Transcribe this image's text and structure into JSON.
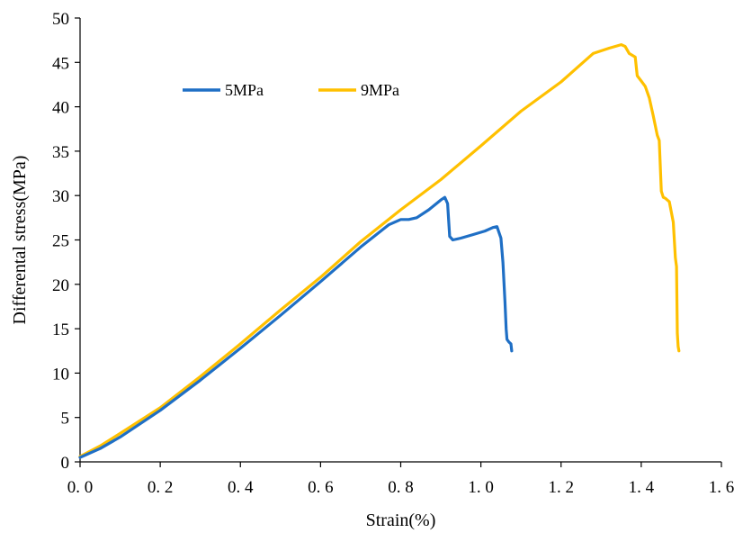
{
  "chart_data": {
    "type": "line",
    "title": "",
    "xlabel": "Strain(%)",
    "ylabel": "Differental stress(MPa)",
    "xlim": [
      0,
      1.6
    ],
    "ylim": [
      0,
      50
    ],
    "grid": false,
    "legend_position": "top-left",
    "x_tick_labels": [
      "0. 0",
      "0. 2",
      "0. 4",
      "0. 6",
      "0. 8",
      "1. 0",
      "1. 2",
      "1. 4",
      "1. 6"
    ],
    "y_tick_labels": [
      "0",
      "5",
      "10",
      "15",
      "20",
      "25",
      "30",
      "35",
      "40",
      "45",
      "50"
    ],
    "series": [
      {
        "name": "5MPa",
        "color": "#1f6fc5",
        "x": [
          0.0,
          0.05,
          0.1,
          0.2,
          0.3,
          0.4,
          0.5,
          0.6,
          0.7,
          0.77,
          0.8,
          0.82,
          0.84,
          0.87,
          0.9,
          0.91,
          0.917,
          0.922,
          0.93,
          0.95,
          0.98,
          1.01,
          1.03,
          1.04,
          1.05,
          1.055,
          1.06,
          1.063,
          1.065,
          1.07,
          1.075,
          1.077
        ],
        "y": [
          0.5,
          1.5,
          2.8,
          5.8,
          9.2,
          12.8,
          16.5,
          20.3,
          24.2,
          26.7,
          27.3,
          27.3,
          27.5,
          28.4,
          29.5,
          29.8,
          29.1,
          25.4,
          25.0,
          25.2,
          25.6,
          26.0,
          26.4,
          26.5,
          25.2,
          22.5,
          18.0,
          15.0,
          13.8,
          13.5,
          13.3,
          12.5
        ]
      },
      {
        "name": "9MPa",
        "color": "#ffc000",
        "x": [
          0.0,
          0.05,
          0.1,
          0.2,
          0.3,
          0.4,
          0.5,
          0.6,
          0.7,
          0.8,
          0.9,
          1.0,
          1.1,
          1.2,
          1.28,
          1.32,
          1.35,
          1.36,
          1.37,
          1.385,
          1.39,
          1.395,
          1.4,
          1.41,
          1.42,
          1.43,
          1.44,
          1.445,
          1.45,
          1.455,
          1.46,
          1.47,
          1.48,
          1.485,
          1.488,
          1.49,
          1.492,
          1.494
        ],
        "y": [
          0.6,
          1.8,
          3.2,
          6.1,
          9.6,
          13.3,
          17.1,
          20.8,
          24.8,
          28.4,
          31.8,
          35.6,
          39.5,
          42.8,
          46.0,
          46.6,
          47.0,
          46.8,
          46.0,
          45.6,
          43.5,
          43.2,
          42.9,
          42.3,
          41.0,
          39.0,
          36.8,
          36.2,
          30.5,
          29.8,
          29.7,
          29.3,
          27.0,
          23.0,
          22.0,
          14.5,
          13.0,
          12.5
        ]
      }
    ]
  }
}
